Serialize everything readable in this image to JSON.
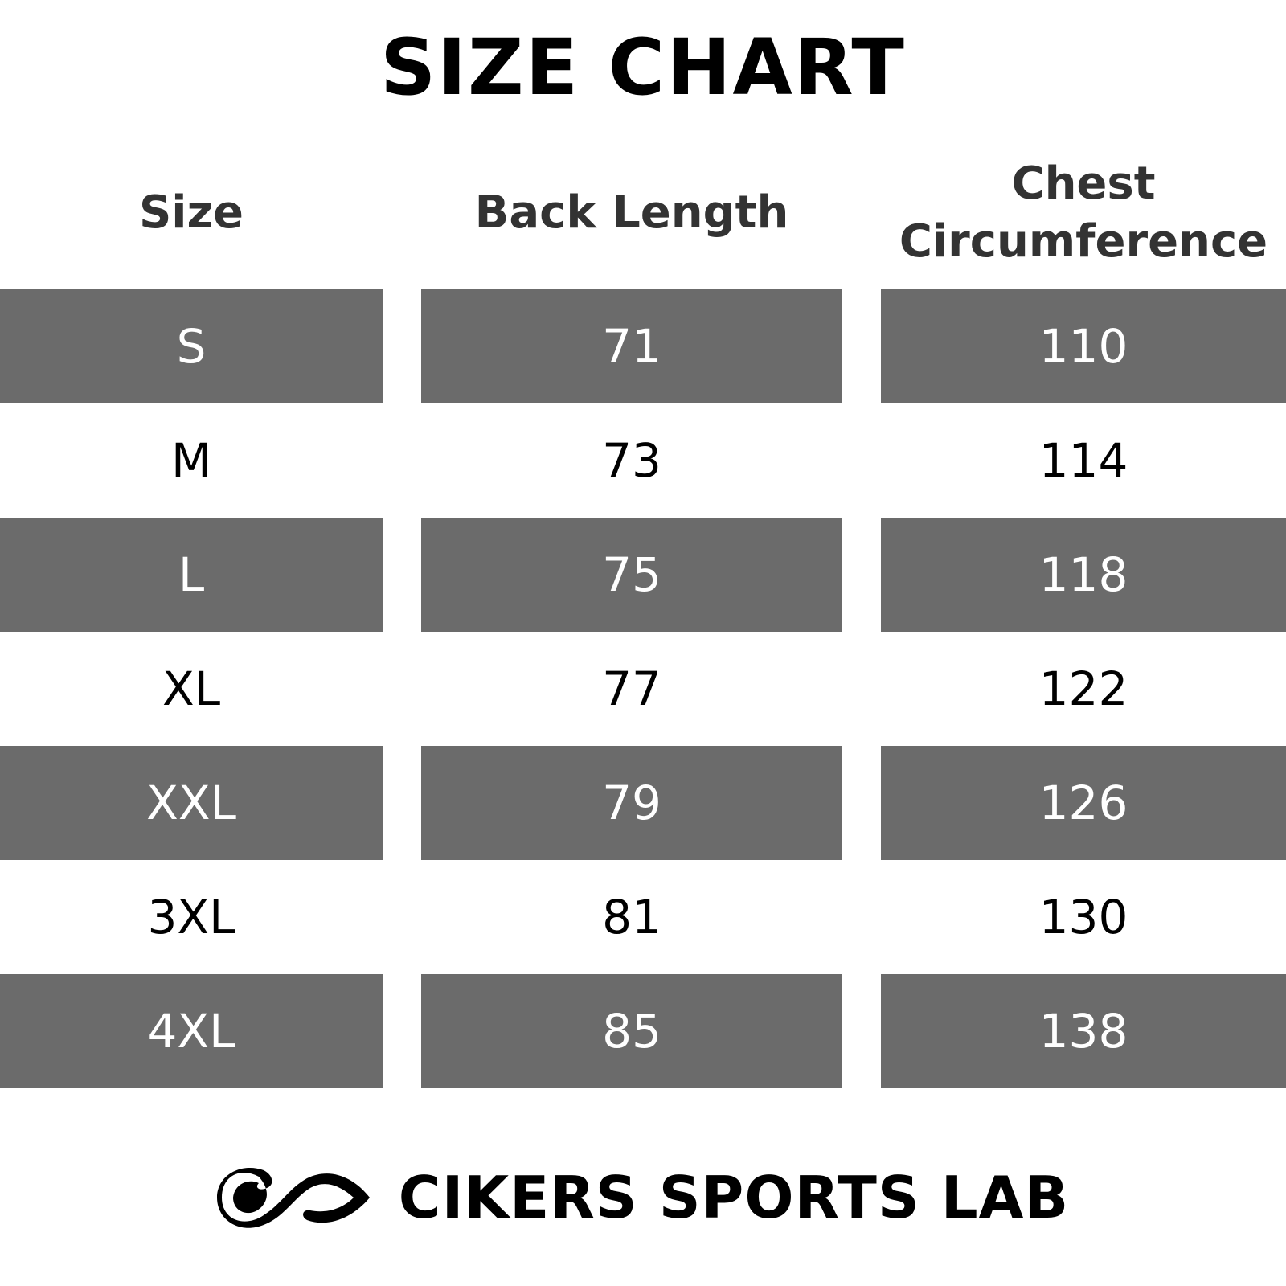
{
  "title": "SIZE CHART",
  "table": {
    "headers": [
      "Size",
      "Back Length",
      "Chest Circumference"
    ],
    "rows": [
      [
        "S",
        "71",
        "110"
      ],
      [
        "M",
        "73",
        "114"
      ],
      [
        "L",
        "75",
        "118"
      ],
      [
        "XL",
        "77",
        "122"
      ],
      [
        "XXL",
        "79",
        "126"
      ],
      [
        "3XL",
        "81",
        "130"
      ],
      [
        "4XL",
        "85",
        "138"
      ]
    ]
  },
  "brand": "CIKERS SPORTS LAB"
}
